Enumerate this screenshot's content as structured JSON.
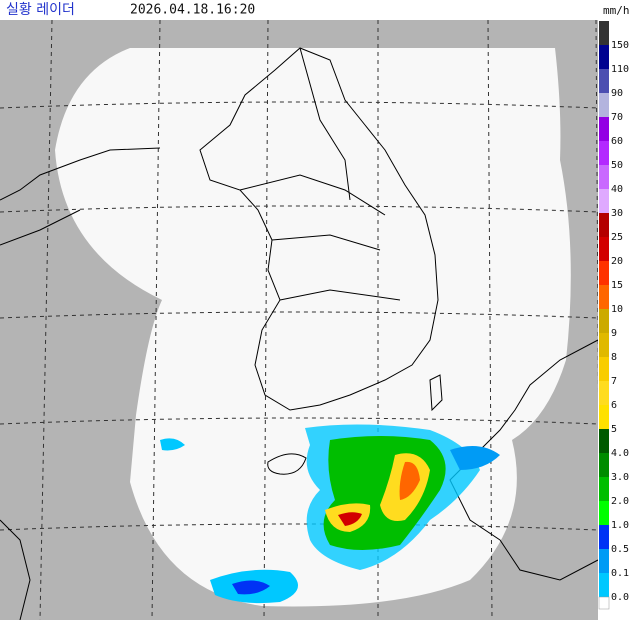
{
  "header": {
    "title": "실황 레이더",
    "timestamp": "2026.04.18.16:20",
    "unit": "mm/h"
  },
  "legend": {
    "entries": [
      {
        "label": "150",
        "color": "#333333"
      },
      {
        "label": "110",
        "color": "#000390"
      },
      {
        "label": "90",
        "color": "#4c4eb1"
      },
      {
        "label": "70",
        "color": "#b3b4de"
      },
      {
        "label": "60",
        "color": "#9300e4"
      },
      {
        "label": "50",
        "color": "#b329ff"
      },
      {
        "label": "40",
        "color": "#c969ff"
      },
      {
        "label": "30",
        "color": "#dfa9ff"
      },
      {
        "label": "25",
        "color": "#b40000"
      },
      {
        "label": "20",
        "color": "#d20000"
      },
      {
        "label": "15",
        "color": "#ff3200"
      },
      {
        "label": "10",
        "color": "#ff6600"
      },
      {
        "label": "9",
        "color": "#ccaa00"
      },
      {
        "label": "8",
        "color": "#e0b900"
      },
      {
        "label": "7",
        "color": "#f9cd00"
      },
      {
        "label": "6",
        "color": "#ffdc1f"
      },
      {
        "label": "5",
        "color": "#ffe100"
      },
      {
        "label": "4.0",
        "color": "#005a00"
      },
      {
        "label": "3.0",
        "color": "#008c00"
      },
      {
        "label": "2.0",
        "color": "#00be00"
      },
      {
        "label": "1.0",
        "color": "#00ff00"
      },
      {
        "label": "0.5",
        "color": "#0033f5"
      },
      {
        "label": "0.1",
        "color": "#009bf5"
      },
      {
        "label": "0.0",
        "color": "#00c8ff"
      }
    ]
  }
}
